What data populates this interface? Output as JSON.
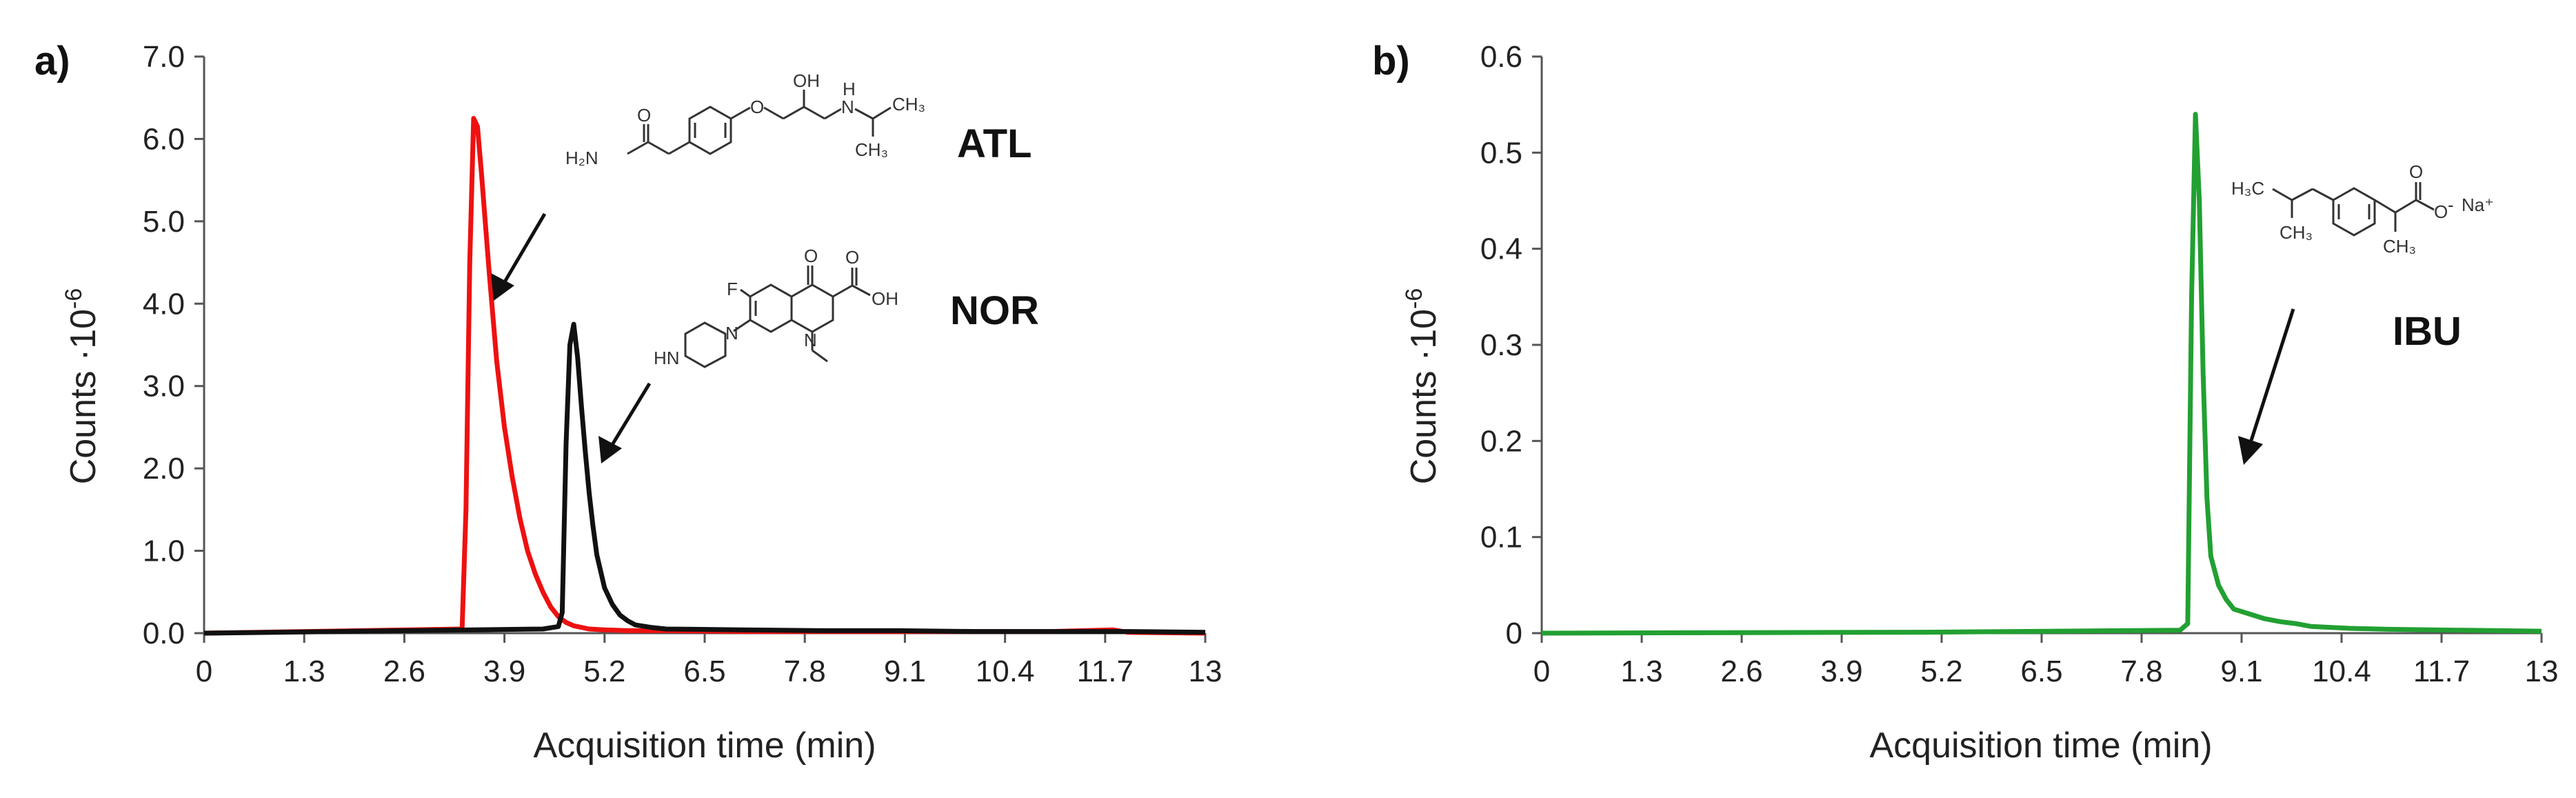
{
  "chart_data": [
    {
      "panel": "a)",
      "type": "line",
      "xlabel": "Acquisition time (min)",
      "ylabel": "Counts ·10",
      "ylabel_exp": "-6",
      "xlim": [
        0,
        13
      ],
      "ylim": [
        0,
        7
      ],
      "x_ticks": [
        "0",
        "1.3",
        "2.6",
        "3.9",
        "5.2",
        "6.5",
        "7.8",
        "9.1",
        "10.4",
        "11.7",
        "13"
      ],
      "y_ticks": [
        "0.0",
        "1.0",
        "2.0",
        "3.0",
        "4.0",
        "5.0",
        "6.0",
        "7.0"
      ],
      "grid": false,
      "series": [
        {
          "name": "ATL",
          "color": "#ee1111",
          "x": [
            0,
            3.35,
            3.4,
            3.45,
            3.5,
            3.55,
            3.6,
            3.7,
            3.8,
            3.9,
            4.0,
            4.1,
            4.2,
            4.3,
            4.4,
            4.5,
            4.6,
            4.7,
            4.8,
            5.0,
            5.2,
            5.5,
            6.0,
            7.0,
            8.0,
            9.0,
            10.0,
            11.0,
            11.8,
            12.0,
            13.0
          ],
          "y": [
            0.0,
            0.05,
            1.5,
            4.5,
            6.25,
            6.15,
            5.6,
            4.4,
            3.3,
            2.5,
            1.9,
            1.4,
            1.0,
            0.72,
            0.5,
            0.32,
            0.2,
            0.13,
            0.09,
            0.05,
            0.04,
            0.03,
            0.03,
            0.02,
            0.02,
            0.02,
            0.02,
            0.02,
            0.04,
            0.01,
            0.0
          ]
        },
        {
          "name": "NOR",
          "color": "#111111",
          "x": [
            0,
            4.4,
            4.6,
            4.65,
            4.7,
            4.75,
            4.8,
            4.85,
            4.9,
            4.95,
            5.0,
            5.05,
            5.1,
            5.2,
            5.3,
            5.4,
            5.5,
            5.6,
            5.8,
            6.0,
            7.0,
            8.0,
            9.0,
            10.0,
            11.0,
            12.0,
            13.0
          ],
          "y": [
            0.0,
            0.05,
            0.08,
            0.25,
            2.3,
            3.5,
            3.75,
            3.35,
            2.75,
            2.2,
            1.7,
            1.3,
            0.95,
            0.55,
            0.35,
            0.22,
            0.15,
            0.1,
            0.07,
            0.05,
            0.04,
            0.03,
            0.03,
            0.02,
            0.02,
            0.02,
            0.01
          ]
        }
      ],
      "annotations": [
        "ATL",
        "NOR"
      ]
    },
    {
      "panel": "b)",
      "type": "line",
      "xlabel": "Acquisition time (min)",
      "ylabel": "Counts ·10",
      "ylabel_exp": "-6",
      "xlim": [
        0,
        13
      ],
      "ylim": [
        0,
        0.6
      ],
      "x_ticks": [
        "0",
        "1.3",
        "2.6",
        "3.9",
        "5.2",
        "6.5",
        "7.8",
        "9.1",
        "10.4",
        "11.7",
        "13"
      ],
      "y_ticks": [
        "0",
        "0.1",
        "0.2",
        "0.3",
        "0.4",
        "0.5",
        "0.6"
      ],
      "grid": false,
      "series": [
        {
          "name": "IBU",
          "color": "#22a032",
          "x": [
            0,
            5.0,
            8.3,
            8.4,
            8.45,
            8.5,
            8.55,
            8.6,
            8.65,
            8.7,
            8.8,
            8.9,
            9.0,
            9.2,
            9.4,
            9.6,
            9.8,
            10.0,
            10.5,
            11.0,
            12.0,
            13.0
          ],
          "y": [
            0.0,
            0.001,
            0.003,
            0.01,
            0.35,
            0.54,
            0.45,
            0.27,
            0.14,
            0.08,
            0.05,
            0.035,
            0.025,
            0.02,
            0.015,
            0.012,
            0.01,
            0.007,
            0.005,
            0.004,
            0.003,
            0.002
          ]
        }
      ],
      "annotations": [
        "IBU"
      ]
    }
  ],
  "structures": {
    "atl": {
      "nh2": "H₂N",
      "o": "O",
      "o2": "O",
      "oh": "OH",
      "nh": "N",
      "h": "H",
      "ch3a": "CH₃",
      "ch3b": "CH₃"
    },
    "nor": {
      "f": "F",
      "o": "O",
      "oh": "OH",
      "o2": "O",
      "n1": "N",
      "n2": "N",
      "hn": "HN"
    },
    "ibu": {
      "h3c": "H₃C",
      "ch3a": "CH₃",
      "ch3b": "CH₃",
      "o": "O",
      "ominus": "O",
      "na": "Na⁺"
    }
  }
}
